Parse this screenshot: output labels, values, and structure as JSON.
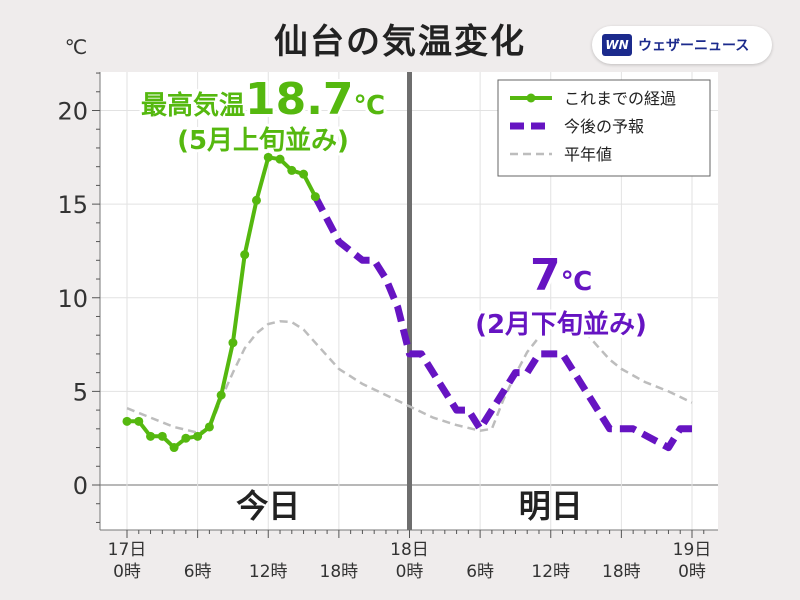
{
  "page": {
    "title": "仙台の気温変化"
  },
  "brand": {
    "mark": "WN",
    "name": "ウェザーニュース"
  },
  "chart_data": {
    "type": "line",
    "title": "仙台の気温変化",
    "ylabel": "℃",
    "ylim": [
      -2.5,
      22.5
    ],
    "xlim": [
      0,
      49
    ],
    "yticks": [
      0,
      5,
      10,
      15,
      20
    ],
    "xticks": [
      {
        "x": 0,
        "label": [
          "17日",
          "0時"
        ]
      },
      {
        "x": 6,
        "label": [
          "6時"
        ]
      },
      {
        "x": 12,
        "label": [
          "12時"
        ]
      },
      {
        "x": 18,
        "label": [
          "18時"
        ]
      },
      {
        "x": 24,
        "label": [
          "18日",
          "0時"
        ]
      },
      {
        "x": 30,
        "label": [
          "6時"
        ]
      },
      {
        "x": 36,
        "label": [
          "12時"
        ]
      },
      {
        "x": 42,
        "label": [
          "18時"
        ]
      },
      {
        "x": 48,
        "label": [
          "19日",
          "0時"
        ]
      }
    ],
    "day_divider_x": 24,
    "day_labels": [
      {
        "x": 12,
        "text": "今日"
      },
      {
        "x": 36,
        "text": "明日"
      }
    ],
    "series": [
      {
        "name": "これまでの経過",
        "style": "solid-markers",
        "color": "#55b80f",
        "x": [
          0,
          1,
          2,
          3,
          4,
          5,
          6,
          7,
          8,
          9,
          10,
          11,
          12,
          13,
          14,
          15,
          16
        ],
        "values": [
          3.4,
          3.4,
          2.6,
          2.6,
          2.0,
          2.5,
          2.6,
          3.1,
          4.8,
          7.6,
          12.3,
          15.2,
          17.5,
          17.4,
          16.8,
          16.6,
          15.4
        ]
      },
      {
        "name": "今後の予報",
        "style": "dashed-thick",
        "color": "#6614c2",
        "x": [
          16,
          18,
          20,
          21,
          22,
          23,
          24,
          25,
          27,
          28,
          29,
          30,
          33,
          34,
          35,
          36,
          37,
          40,
          41,
          42,
          43,
          46,
          47,
          48
        ],
        "values": [
          15.4,
          13,
          12,
          12,
          11,
          9.5,
          7,
          7,
          5,
          4,
          4,
          3,
          6,
          6,
          7,
          7,
          7,
          4,
          3,
          3,
          3,
          2,
          3,
          3
        ]
      },
      {
        "name": "平年値",
        "style": "dashed-thin",
        "color": "#bdbdbd",
        "x": [
          0,
          2,
          4,
          6,
          7,
          8,
          9,
          10,
          11,
          12,
          13,
          14,
          15,
          16,
          17,
          18,
          20,
          22,
          24,
          26,
          28,
          30,
          31,
          32,
          33,
          34,
          35,
          36,
          37,
          38,
          39,
          40,
          41,
          42,
          44,
          46,
          48
        ],
        "values": [
          4.1,
          3.6,
          3.1,
          2.8,
          3.0,
          4.6,
          6.0,
          7.3,
          8.1,
          8.6,
          8.75,
          8.7,
          8.3,
          7.6,
          6.9,
          6.2,
          5.4,
          4.8,
          4.2,
          3.6,
          3.2,
          2.9,
          3.0,
          4.6,
          5.9,
          7.1,
          7.9,
          8.5,
          8.7,
          8.6,
          8.1,
          7.4,
          6.7,
          6.2,
          5.5,
          5.0,
          4.4
        ]
      }
    ],
    "annotations": [
      {
        "id": "max-today",
        "color": "#55b80f",
        "lines": [
          [
            {
              "t": "最高気温",
              "size": "m"
            },
            {
              "t": "18.7",
              "size": "l"
            },
            {
              "t": "℃",
              "size": "m"
            }
          ],
          [
            {
              "t": "(5月上旬並み)",
              "size": "m"
            }
          ]
        ]
      },
      {
        "id": "max-tomorrow",
        "color": "#6614c2",
        "lines": [
          [
            {
              "t": "7",
              "size": "l"
            },
            {
              "t": "℃",
              "size": "m"
            }
          ],
          [
            {
              "t": "(2月下旬並み)",
              "size": "m"
            }
          ]
        ]
      }
    ],
    "legend_position": "top-right"
  }
}
